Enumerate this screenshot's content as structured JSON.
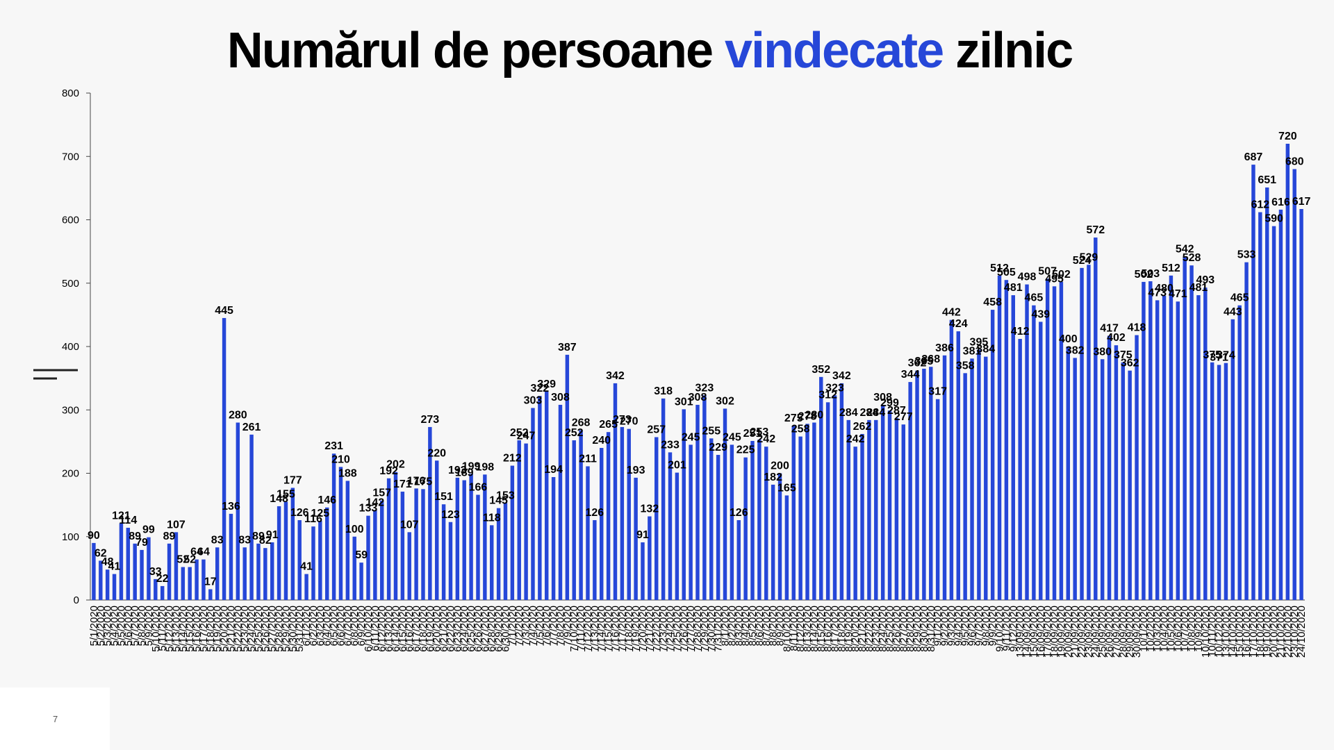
{
  "title": {
    "part1": "Numărul de persoane ",
    "accent": "vindecate",
    "part2": " zilnic"
  },
  "slide_number": "7",
  "colors": {
    "bar": "#2647d8",
    "accent": "#2647d8",
    "text": "#000000"
  },
  "chart_data": {
    "type": "bar",
    "title": "Numărul de persoane vindecate zilnic",
    "xlabel": "",
    "ylabel": "",
    "ylim": [
      0,
      800
    ],
    "yticks": [
      0,
      100,
      200,
      300,
      400,
      500,
      600,
      700,
      800
    ],
    "grid": false,
    "legend": "none",
    "categories": [
      "5/1/2020",
      "5/2/2020",
      "5/3/2020",
      "5/4/2020",
      "5/5/2020",
      "5/6/2020",
      "5/7/2020",
      "5/8/2020",
      "5/9/2020",
      "5/10/2020",
      "5/11/2020",
      "5/12/2020",
      "5/13/2020",
      "5/14/2020",
      "5/15/2020",
      "5/16/2020",
      "5/17/2020",
      "5/18/2020",
      "5/19/2020",
      "5/20/2020",
      "5/21/2020",
      "5/22/2020",
      "5/23/2020",
      "5/24/2020",
      "5/25/2020",
      "5/26/2020",
      "5/27/2020",
      "5/28/2020",
      "5/29/2020",
      "5/30/2020",
      "5/31/2020",
      "6/1/2020",
      "6/2/2020",
      "6/3/2020",
      "6/4/2020",
      "6/5/2020",
      "6/6/2020",
      "6/7/2020",
      "6/8/2020",
      "6/9/2020",
      "6/10/2020",
      "6/11/2020",
      "6/12/2020",
      "6/13/2020",
      "6/14/2020",
      "6/15/2020",
      "6/16/2020",
      "6/17/2020",
      "6/18/2020",
      "6/19/2020",
      "6/20/2020",
      "6/21/2020",
      "6/22/2020",
      "6/23/2020",
      "6/24/2020",
      "6/25/2020",
      "6/26/2020",
      "6/27/2020",
      "6/28/2020",
      "6/29/2020",
      "6/30/2020",
      "7/1/2020",
      "7/2/2020",
      "7/3/2020",
      "7/4/2020",
      "7/5/2020",
      "7/6/2020",
      "7/7/2020",
      "7/8/2020",
      "7/9/2020",
      "7/10/2020",
      "7/11/2020",
      "7/12/2020",
      "7/13/2020",
      "7/14/2020",
      "7/15/2020",
      "7/16/2020",
      "7/17/2020",
      "7/18/2020",
      "7/19/2020",
      "7/20/2020",
      "7/21/2020",
      "7/22/2020",
      "7/23/2020",
      "7/24/2020",
      "7/25/2020",
      "7/26/2020",
      "7/27/2020",
      "7/28/2020",
      "7/29/2020",
      "7/30/2020",
      "7/31/2020",
      "8/1/2020",
      "8/2/2020",
      "8/3/2020",
      "8/4/2020",
      "8/5/2020",
      "8/6/2020",
      "8/7/2020",
      "8/8/2020",
      "8/9/2020",
      "8/10/2020",
      "8/11/2020",
      "8/12/2020",
      "8/13/2020",
      "8/14/2020",
      "8/15/2020",
      "8/16/2020",
      "8/17/2020",
      "8/18/2020",
      "8/19/2020",
      "8/20/2020",
      "8/21/2020",
      "8/22/2020",
      "8/23/2020",
      "8/24/2020",
      "8/25/2020",
      "8/26/2020",
      "8/27/2020",
      "8/28/2020",
      "8/29/2020",
      "8/30/2020",
      "8/31/2020",
      "9/1/2020",
      "9/2/2020",
      "9/3/2020",
      "9/4/2020",
      "9/5/2020",
      "9/6/2020",
      "9/7/2020",
      "9/8/2020",
      "9/9/2020",
      "9/10/2020",
      "9/11/2020",
      "9/12/2020",
      "13/09/2020",
      "14/09/2020",
      "15/09/2020",
      "16/09/2020",
      "17/09/2020",
      "18/09/2020",
      "19/09/2020",
      "20/09/2020",
      "21/09/2020",
      "22/09/2020",
      "23/09/2020",
      "24/09/2020",
      "25/09/2020",
      "26/09/2020",
      "27/09/2020",
      "28/09/2020",
      "29/09/2020",
      "30/09/2020",
      "10/1/2020",
      "10/2/2020",
      "10/3/2020",
      "10/4/2020",
      "10/5/2020",
      "10/6/2020",
      "10/7/2020",
      "10/8/2020",
      "10/9/2020",
      "10/10/2020",
      "10/11/2020",
      "10/12/2020",
      "13/10/2020",
      "14/10/2020",
      "15/10/2020",
      "16/10/2020",
      "17/10/2020",
      "18/10/2020",
      "19/10/2020",
      "20/10/2020",
      "21/10/2020",
      "22/10/2020",
      "23/10/2020",
      "24/10/2020"
    ],
    "values": [
      90,
      62,
      48,
      41,
      121,
      114,
      89,
      79,
      99,
      33,
      22,
      89,
      107,
      52,
      52,
      64,
      64,
      17,
      83,
      445,
      136,
      280,
      83,
      261,
      89,
      82,
      91,
      148,
      155,
      177,
      126,
      41,
      116,
      125,
      146,
      231,
      210,
      188,
      100,
      59,
      133,
      142,
      157,
      192,
      202,
      171,
      107,
      176,
      175,
      273,
      220,
      151,
      123,
      193,
      189,
      199,
      166,
      198,
      118,
      145,
      153,
      212,
      252,
      247,
      303,
      322,
      329,
      194,
      308,
      387,
      252,
      268,
      211,
      126,
      240,
      265,
      342,
      273,
      270,
      193,
      91,
      132,
      257,
      318,
      233,
      201,
      301,
      245,
      308,
      323,
      255,
      229,
      302,
      245,
      126,
      225,
      251,
      253,
      242,
      182,
      200,
      165,
      275,
      258,
      278,
      280,
      352,
      312,
      323,
      342,
      284,
      242,
      262,
      284,
      284,
      308,
      299,
      287,
      277,
      344,
      362,
      365,
      368,
      317,
      386,
      442,
      424,
      358,
      381,
      395,
      384,
      458,
      512,
      505,
      481,
      412,
      498,
      465,
      439,
      507,
      495,
      502,
      400,
      382,
      524,
      529,
      572,
      380,
      417,
      402,
      375,
      362,
      418,
      502,
      503,
      473,
      480,
      512,
      471,
      542,
      528,
      481,
      493,
      375,
      371,
      374,
      443,
      465,
      533,
      687,
      612,
      651,
      590,
      616,
      720,
      680,
      617
    ]
  }
}
